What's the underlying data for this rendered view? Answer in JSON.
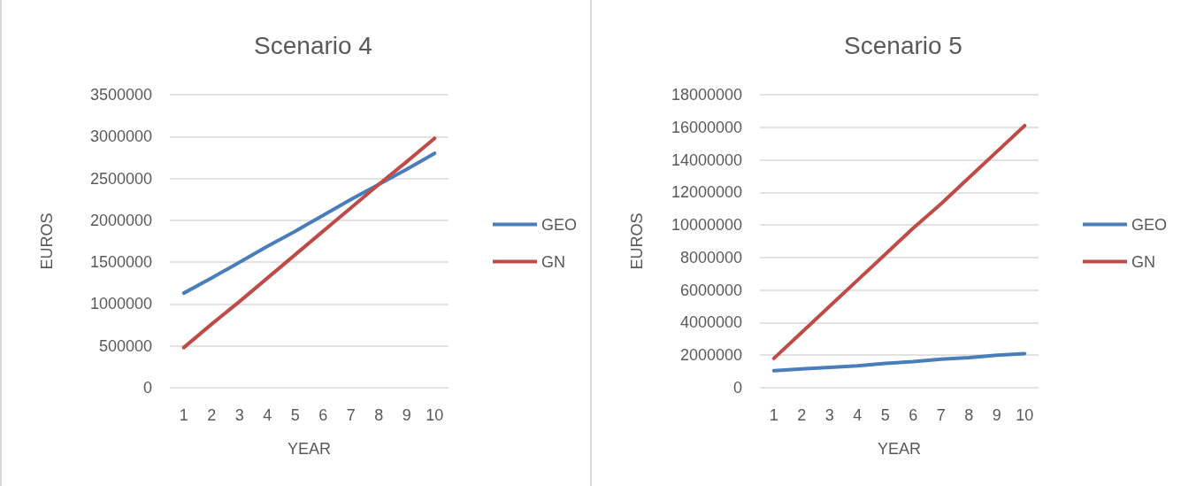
{
  "chart_data": [
    {
      "type": "line",
      "title": "Scenario 4",
      "xlabel": "YEAR",
      "ylabel": "EUROS",
      "categories": [
        "1",
        "2",
        "3",
        "4",
        "5",
        "6",
        "7",
        "8",
        "9",
        "10"
      ],
      "ylim": [
        0,
        3500000
      ],
      "yticks": [
        0,
        500000,
        1000000,
        1500000,
        2000000,
        2500000,
        3000000,
        3500000
      ],
      "grid": "y",
      "legend": "right",
      "marker": "none",
      "line_style": "solid",
      "series": [
        {
          "name": "GEO",
          "color": "#4a7ebb",
          "values": [
            1130000,
            1310000,
            1500000,
            1690000,
            1870000,
            2060000,
            2250000,
            2430000,
            2610000,
            2800000
          ]
        },
        {
          "name": "GN",
          "color": "#be4b48",
          "values": [
            480000,
            760000,
            1030000,
            1310000,
            1590000,
            1870000,
            2150000,
            2430000,
            2700000,
            2980000
          ]
        }
      ]
    },
    {
      "type": "line",
      "title": "Scenario 5",
      "xlabel": "YEAR",
      "ylabel": "EUROS",
      "categories": [
        "1",
        "2",
        "3",
        "4",
        "5",
        "6",
        "7",
        "8",
        "9",
        "10"
      ],
      "ylim": [
        0,
        18000000
      ],
      "yticks": [
        0,
        2000000,
        4000000,
        6000000,
        8000000,
        10000000,
        12000000,
        14000000,
        16000000,
        18000000
      ],
      "grid": "y",
      "legend": "right",
      "marker": "none",
      "line_style": "solid",
      "series": [
        {
          "name": "GEO",
          "color": "#4a7ebb",
          "values": [
            1050000,
            1150000,
            1250000,
            1350000,
            1500000,
            1600000,
            1750000,
            1850000,
            2000000,
            2100000
          ]
        },
        {
          "name": "GN",
          "color": "#be4b48",
          "values": [
            1800000,
            3400000,
            5000000,
            6600000,
            8200000,
            9800000,
            11300000,
            12900000,
            14500000,
            16100000
          ]
        }
      ]
    }
  ]
}
